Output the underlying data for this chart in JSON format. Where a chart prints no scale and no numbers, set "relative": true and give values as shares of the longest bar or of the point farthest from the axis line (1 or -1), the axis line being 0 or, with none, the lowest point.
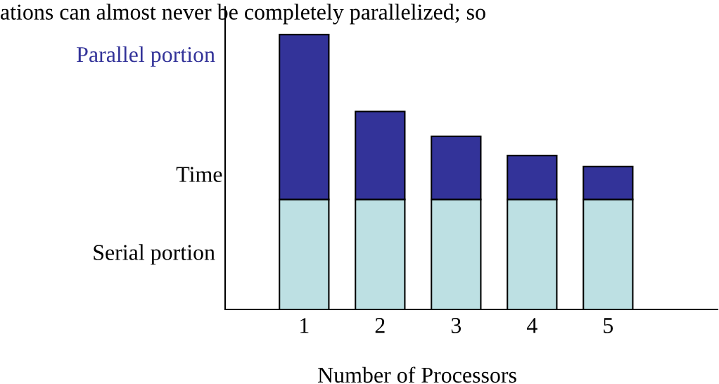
{
  "chart_data": {
    "type": "bar",
    "stacked": true,
    "relative": true,
    "xlabel": "Number of Processors",
    "ylabel": "Time",
    "categories": [
      "1",
      "2",
      "3",
      "4",
      "5"
    ],
    "series": [
      {
        "name": "Serial portion",
        "color": "#bde0e3",
        "values": [
          0.4,
          0.4,
          0.4,
          0.4,
          0.4
        ]
      },
      {
        "name": "Parallel portion",
        "color": "#333399",
        "values": [
          0.6,
          0.32,
          0.23,
          0.16,
          0.12
        ]
      }
    ],
    "annotations": [
      "ations can almost never be completely parallelized; so"
    ],
    "grid": false,
    "legend": false
  }
}
